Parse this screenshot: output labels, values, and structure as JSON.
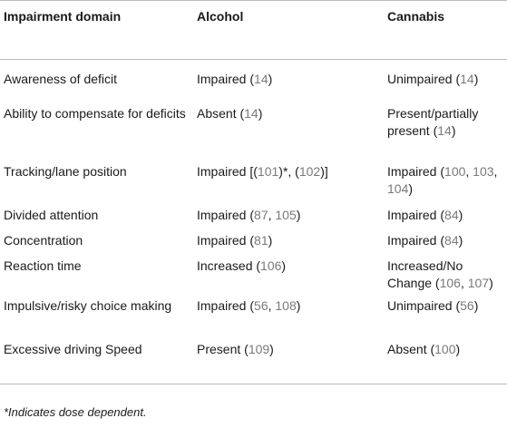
{
  "table": {
    "headers": [
      "Impairment domain",
      "Alcohol",
      "Cannabis"
    ],
    "rows": [
      {
        "domain": "Awareness of deficit",
        "alcohol": [
          {
            "t": "Impaired ("
          },
          {
            "t": "14",
            "r": true
          },
          {
            "t": ")"
          }
        ],
        "cannabis": [
          {
            "t": "Unimpaired ("
          },
          {
            "t": "14",
            "r": true
          },
          {
            "t": ")"
          }
        ]
      },
      {
        "domain": "Ability to compensate for deficits",
        "alcohol": [
          {
            "t": "Absent ("
          },
          {
            "t": "14",
            "r": true
          },
          {
            "t": ")"
          }
        ],
        "cannabis": [
          {
            "t": "Present/partially present ("
          },
          {
            "t": "14",
            "r": true
          },
          {
            "t": ")"
          }
        ]
      },
      {
        "domain": "Tracking/lane position",
        "alcohol": [
          {
            "t": "Impaired [("
          },
          {
            "t": "101",
            "r": true
          },
          {
            "t": ")*, ("
          },
          {
            "t": "102",
            "r": true
          },
          {
            "t": ")]"
          }
        ],
        "cannabis": [
          {
            "t": "Impaired ("
          },
          {
            "t": "100",
            "r": true
          },
          {
            "t": ", "
          },
          {
            "t": "103",
            "r": true
          },
          {
            "t": ", "
          },
          {
            "t": "104",
            "r": true
          },
          {
            "t": ")"
          }
        ]
      },
      {
        "domain": "Divided attention",
        "alcohol": [
          {
            "t": "Impaired ("
          },
          {
            "t": "87",
            "r": true
          },
          {
            "t": ", "
          },
          {
            "t": "105",
            "r": true
          },
          {
            "t": ")"
          }
        ],
        "cannabis": [
          {
            "t": "Impaired ("
          },
          {
            "t": "84",
            "r": true
          },
          {
            "t": ")"
          }
        ]
      },
      {
        "domain": "Concentration",
        "alcohol": [
          {
            "t": "Impaired ("
          },
          {
            "t": "81",
            "r": true
          },
          {
            "t": ")"
          }
        ],
        "cannabis": [
          {
            "t": "Impaired ("
          },
          {
            "t": "84",
            "r": true
          },
          {
            "t": ")"
          }
        ]
      },
      {
        "domain": "Reaction time",
        "alcohol": [
          {
            "t": "Increased ("
          },
          {
            "t": "106",
            "r": true
          },
          {
            "t": ")"
          }
        ],
        "cannabis": [
          {
            "t": "Increased/No Change ("
          },
          {
            "t": "106",
            "r": true
          },
          {
            "t": ", "
          },
          {
            "t": "107",
            "r": true
          },
          {
            "t": ")"
          }
        ]
      },
      {
        "domain": "Impulsive/risky choice making",
        "alcohol": [
          {
            "t": "Impaired ("
          },
          {
            "t": "56",
            "r": true
          },
          {
            "t": ", "
          },
          {
            "t": "108",
            "r": true
          },
          {
            "t": ")"
          }
        ],
        "cannabis": [
          {
            "t": "Unimpaired ("
          },
          {
            "t": "56",
            "r": true
          },
          {
            "t": ")"
          }
        ]
      },
      {
        "domain": "Excessive driving Speed",
        "alcohol": [
          {
            "t": "Present ("
          },
          {
            "t": "109",
            "r": true
          },
          {
            "t": ")"
          }
        ],
        "cannabis": [
          {
            "t": "Absent ("
          },
          {
            "t": "100",
            "r": true
          },
          {
            "t": ")"
          }
        ]
      }
    ]
  },
  "footnote": "*Indicates dose dependent.",
  "colors": {
    "reference": "#7a7a7a",
    "text": "#1a1a1a",
    "rule": "#bbbbbb"
  }
}
